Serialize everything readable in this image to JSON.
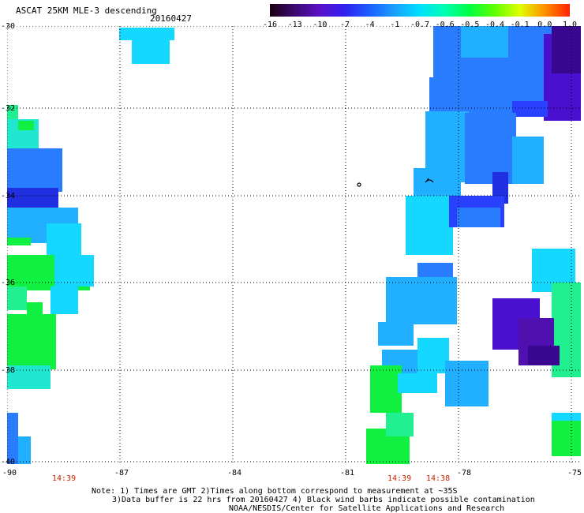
{
  "header": {
    "title": "ASCAT 25KM MLE-3 descending",
    "date": "20160427"
  },
  "colorbar": {
    "labels": [
      "-16",
      "-13",
      "-10",
      "-7",
      "-4",
      "-1",
      "-0.7",
      "-0.6",
      "-0.5",
      "-0.4",
      "-0.1",
      "0.0",
      "1.0"
    ],
    "colors": [
      "#1a0010",
      "#3c0a70",
      "#5a10c8",
      "#3020f0",
      "#1a60ff",
      "#1aa0ff",
      "#00e0ff",
      "#00ffb0",
      "#00ff40",
      "#60ff00",
      "#e0ff00",
      "#ff9000",
      "#ff2000"
    ]
  },
  "axes": {
    "lat_labels": [
      "-30",
      "-32",
      "-34",
      "-36",
      "-38",
      "-40"
    ],
    "lon_labels": [
      "-90",
      "-87",
      "-84",
      "-81",
      "-78",
      "-75"
    ]
  },
  "times": [
    "14:39",
    "14:39",
    "14:38"
  ],
  "notes": [
    "Note: 1) Times are GMT 2)Times along bottom correspond to measurement at ~35S",
    "3)Data buffer is 22 hrs from 20160427 4) Black wind barbs indicate possible contamination",
    "NOAA/NESDIS/Center for Satellite Applications and Research"
  ],
  "swath_colors": {
    "cyan": "#14d8ff",
    "skyblue": "#20b0ff",
    "blue": "#2a7cff",
    "deepblue": "#2a40ff",
    "royal": "#2030e0",
    "purple": "#4a10d0",
    "violet": "#5010b0",
    "dark": "#3a0890",
    "green": "#10f040",
    "seagreen": "#20f090",
    "teal": "#20e8d0"
  }
}
